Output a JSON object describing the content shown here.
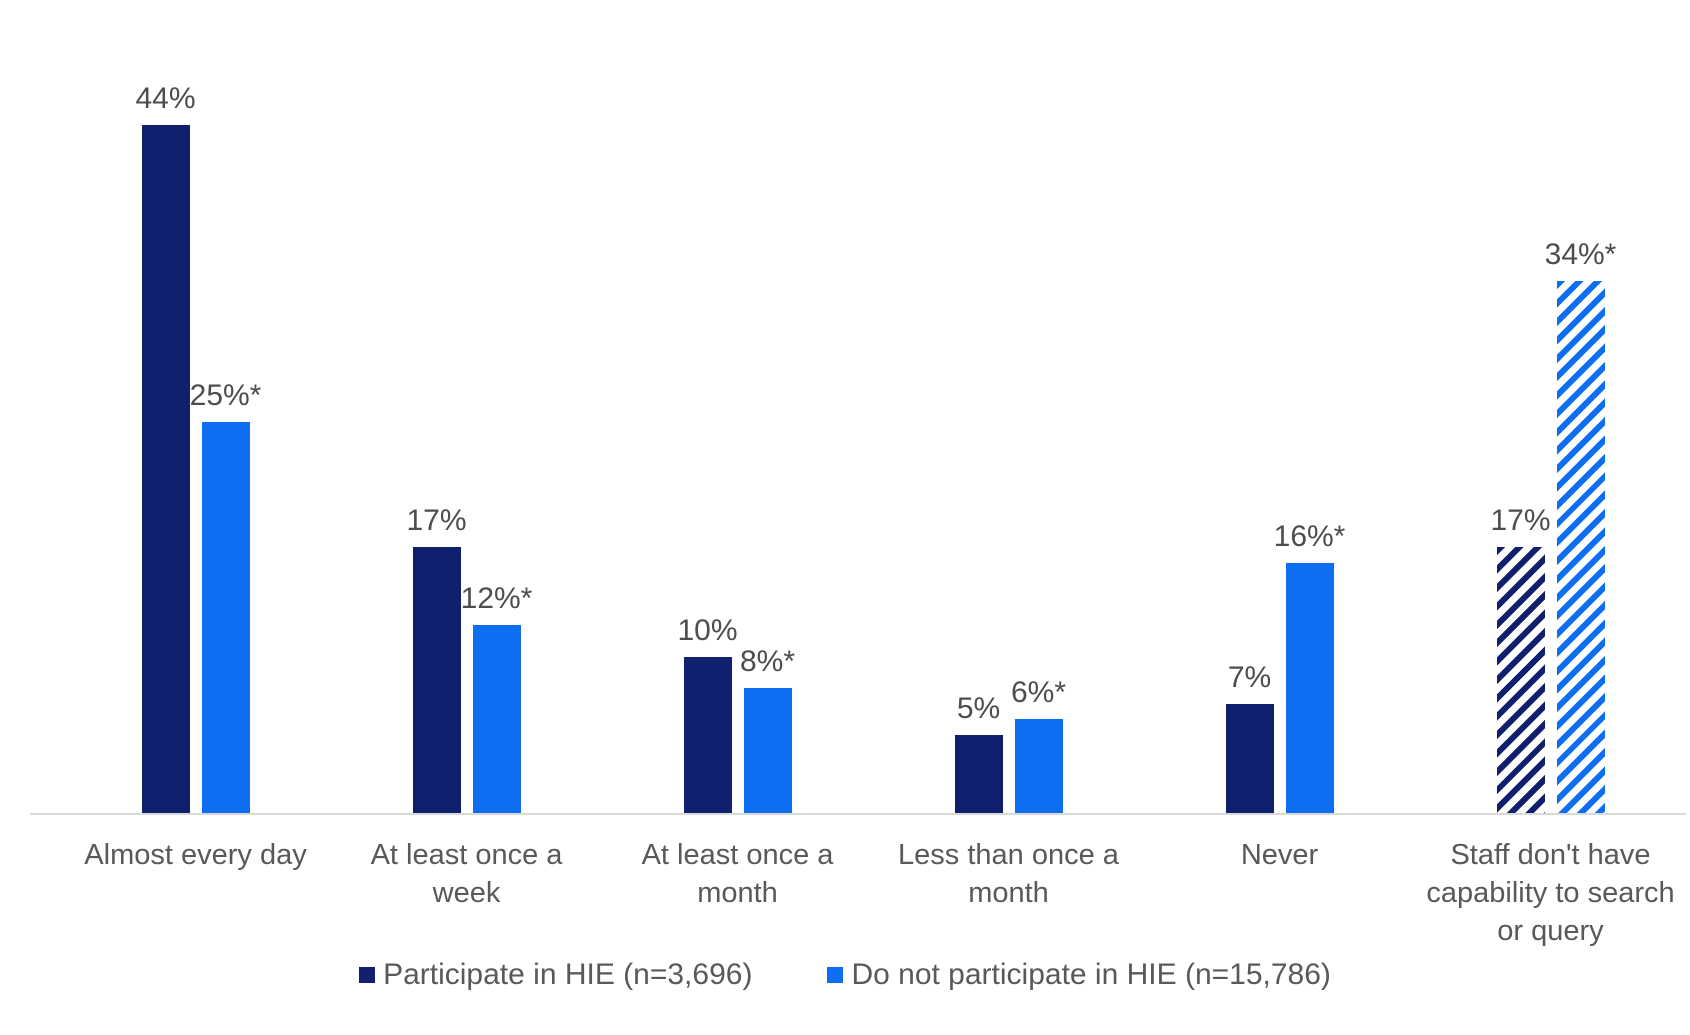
{
  "chart_data": {
    "type": "bar",
    "title": "",
    "xlabel": "",
    "ylabel": "",
    "ylim": [
      0,
      52
    ],
    "grid": false,
    "legend_position": "bottom",
    "axis_color": "#d9d9d9",
    "value_label_color": "#4d4d4d",
    "category_label_color": "#595959",
    "categories": [
      "Almost every day",
      "At least once a\nweek",
      "At least once a\nmonth",
      "Less than once a\nmonth",
      "Never",
      "Staff don't have\ncapability to search\nor query"
    ],
    "series": [
      {
        "name": "Participate in HIE (n=3,696)",
        "color": "#101f6e",
        "values": [
          44,
          17,
          10,
          5,
          7,
          17
        ],
        "labels": [
          "44%",
          "17%",
          "10%",
          "5%",
          "7%",
          "17%"
        ],
        "hatched": [
          false,
          false,
          false,
          false,
          false,
          true
        ]
      },
      {
        "name": "Do not participate in HIE (n=15,786)",
        "color": "#0d6ef2",
        "values": [
          25,
          12,
          8,
          6,
          16,
          34
        ],
        "labels": [
          "25%*",
          "12%*",
          "8%*",
          "6%*",
          "16%*",
          "34%*"
        ],
        "hatched": [
          false,
          false,
          false,
          false,
          false,
          true
        ]
      }
    ]
  }
}
